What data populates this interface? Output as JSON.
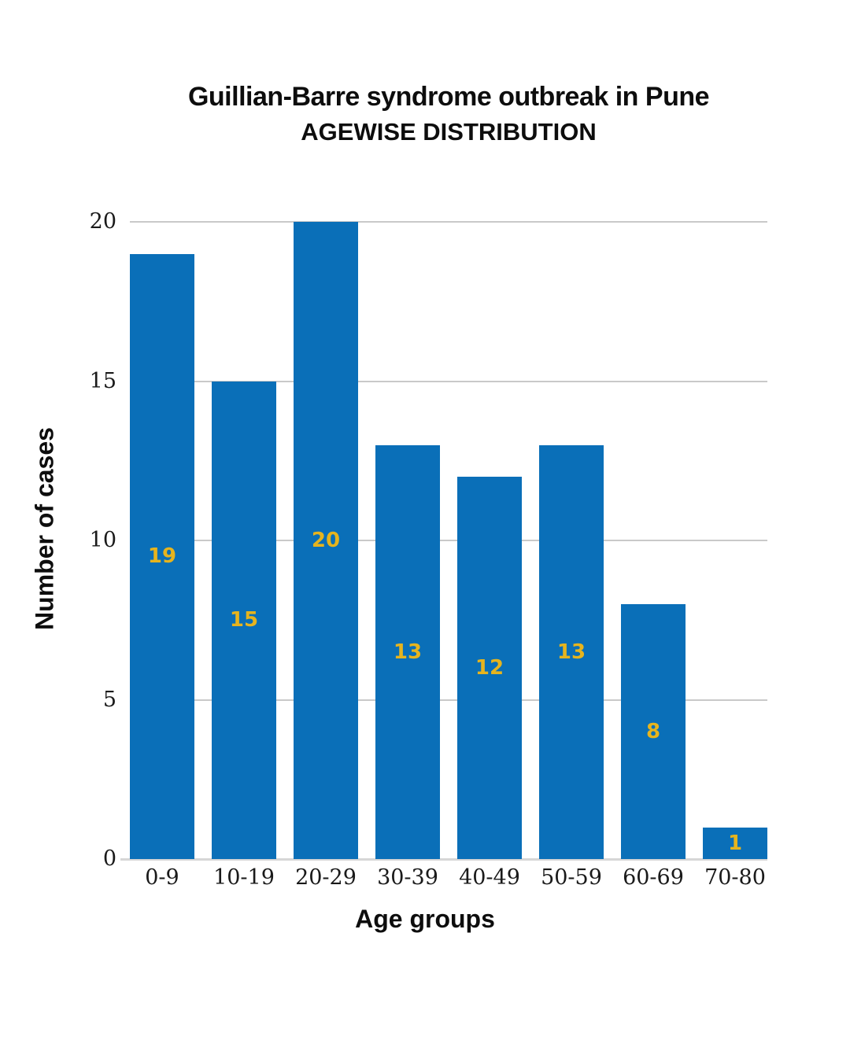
{
  "header": {
    "line1": "Guillian-Barre syndrome outbreak in Pune",
    "line2": "AGEWISE DISTRIBUTION"
  },
  "chart_data": {
    "type": "bar",
    "title": "Guillian-Barre syndrome outbreak in Pune",
    "subtitle": "AGEWISE DISTRIBUTION",
    "categories": [
      "0-9",
      "10-19",
      "20-29",
      "30-39",
      "40-49",
      "50-59",
      "60-69",
      "70-80"
    ],
    "values": [
      19,
      15,
      20,
      13,
      12,
      13,
      8,
      1
    ],
    "xlabel": "Age groups",
    "ylabel": "Number of cases",
    "ylim": [
      0,
      20
    ],
    "yticks": [
      0,
      5,
      10,
      15,
      20
    ],
    "grid": true,
    "legend": "none",
    "bar_color": "#0a6fb8",
    "value_label_color": "#e6b41e",
    "gridline_color": "#c9c9c9",
    "baseline_color": "#d6d6d6"
  }
}
